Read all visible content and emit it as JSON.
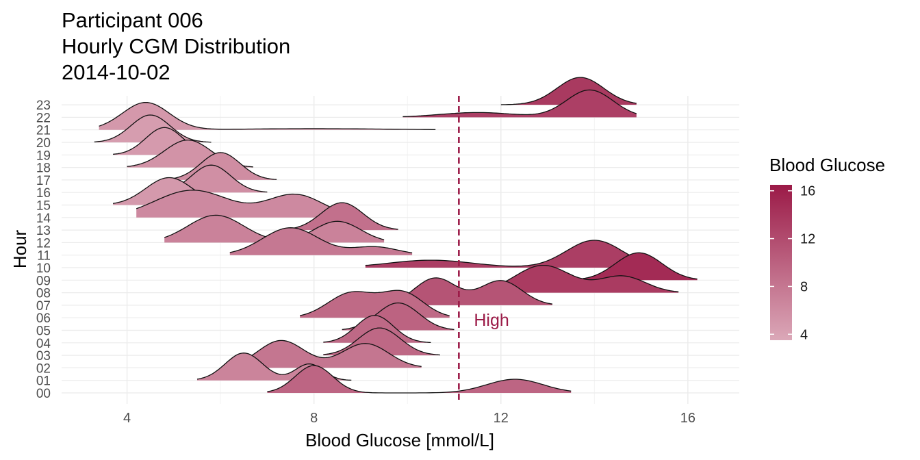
{
  "chart_data": {
    "type": "ridgeline",
    "title": [
      "Participant 006",
      "Hourly CGM Distribution",
      "2014-10-02"
    ],
    "xlabel": "Blood Glucose [mmol/L]",
    "ylabel": "Hour",
    "xlim": [
      2.6,
      17.1
    ],
    "x_ticks": [
      4,
      8,
      12,
      16
    ],
    "threshold": {
      "value": 11.1,
      "label": "High",
      "color": "#9b1a47"
    },
    "legend": {
      "title": "Blood Glucose",
      "ticks": [
        4,
        8,
        12,
        16
      ],
      "range": [
        3.5,
        16.5
      ],
      "color_low": "#dba8b8",
      "color_high": "#9b1a47"
    },
    "hours": [
      {
        "hour": "00",
        "min": 7.0,
        "max": 13.5,
        "mean": 9.6,
        "peaks": [
          [
            8.0,
            1.0,
            0.4
          ],
          [
            12.3,
            0.5,
            0.6
          ]
        ]
      },
      {
        "hour": "01",
        "min": 5.5,
        "max": 8.8,
        "mean": 6.8,
        "peaks": [
          [
            6.5,
            1.0,
            0.4
          ],
          [
            7.9,
            0.6,
            0.3
          ]
        ]
      },
      {
        "hour": "02",
        "min": 6.3,
        "max": 10.3,
        "mean": 8.1,
        "peaks": [
          [
            7.3,
            0.9,
            0.5
          ],
          [
            9.1,
            0.8,
            0.5
          ]
        ]
      },
      {
        "hour": "03",
        "min": 8.2,
        "max": 10.7,
        "mean": 9.4,
        "peaks": [
          [
            9.4,
            1.0,
            0.45
          ]
        ]
      },
      {
        "hour": "04",
        "min": 8.2,
        "max": 10.5,
        "mean": 9.3,
        "peaks": [
          [
            9.3,
            1.0,
            0.4
          ]
        ]
      },
      {
        "hour": "05",
        "min": 8.6,
        "max": 11.0,
        "mean": 9.8,
        "peaks": [
          [
            9.8,
            1.0,
            0.45
          ]
        ]
      },
      {
        "hour": "06",
        "min": 7.7,
        "max": 10.9,
        "mean": 9.2,
        "peaks": [
          [
            8.8,
            0.9,
            0.5
          ],
          [
            9.9,
            0.9,
            0.45
          ]
        ]
      },
      {
        "hour": "07",
        "min": 9.5,
        "max": 13.1,
        "mean": 11.2,
        "peaks": [
          [
            10.6,
            1.0,
            0.45
          ],
          [
            12.0,
            0.9,
            0.45
          ]
        ]
      },
      {
        "hour": "08",
        "min": 11.7,
        "max": 15.8,
        "mean": 13.5,
        "peaks": [
          [
            12.9,
            1.0,
            0.6
          ],
          [
            14.6,
            0.6,
            0.5
          ]
        ]
      },
      {
        "hour": "09",
        "min": 13.5,
        "max": 16.2,
        "mean": 14.9,
        "peaks": [
          [
            14.95,
            1.0,
            0.5
          ]
        ]
      },
      {
        "hour": "10",
        "min": 9.1,
        "max": 15.1,
        "mean": 13.2,
        "peaks": [
          [
            10.5,
            0.15,
            0.9
          ],
          [
            14.0,
            0.55,
            0.6
          ]
        ]
      },
      {
        "hour": "11",
        "min": 6.2,
        "max": 10.1,
        "mean": 7.9,
        "peaks": [
          [
            7.5,
            1.0,
            0.6
          ],
          [
            9.3,
            0.3,
            0.5
          ]
        ]
      },
      {
        "hour": "12",
        "min": 4.8,
        "max": 9.5,
        "mean": 7.0,
        "peaks": [
          [
            5.9,
            0.9,
            0.6
          ],
          [
            8.5,
            0.7,
            0.5
          ]
        ]
      },
      {
        "hour": "13",
        "min": 7.4,
        "max": 9.8,
        "mean": 8.6,
        "peaks": [
          [
            8.6,
            1.0,
            0.45
          ]
        ]
      },
      {
        "hour": "14",
        "min": 4.2,
        "max": 8.9,
        "mean": 6.3,
        "peaks": [
          [
            5.4,
            0.6,
            0.8
          ],
          [
            7.6,
            0.5,
            0.6
          ]
        ]
      },
      {
        "hour": "15",
        "min": 3.7,
        "max": 6.5,
        "mean": 4.9,
        "peaks": [
          [
            4.9,
            1.0,
            0.5
          ]
        ]
      },
      {
        "hour": "16",
        "min": 4.7,
        "max": 7.0,
        "mean": 5.8,
        "peaks": [
          [
            5.8,
            1.0,
            0.42
          ]
        ]
      },
      {
        "hour": "17",
        "min": 4.9,
        "max": 7.2,
        "mean": 6.0,
        "peaks": [
          [
            6.0,
            1.0,
            0.42
          ]
        ]
      },
      {
        "hour": "18",
        "min": 4.0,
        "max": 6.7,
        "mean": 5.4,
        "peaks": [
          [
            5.3,
            1.0,
            0.5
          ]
        ]
      },
      {
        "hour": "19",
        "min": 3.7,
        "max": 5.9,
        "mean": 4.8,
        "peaks": [
          [
            4.8,
            1.0,
            0.4
          ]
        ]
      },
      {
        "hour": "20",
        "min": 3.3,
        "max": 5.8,
        "mean": 4.5,
        "peaks": [
          [
            4.5,
            1.0,
            0.42
          ]
        ]
      },
      {
        "hour": "21",
        "min": 3.4,
        "max": 10.6,
        "mean": 5.0,
        "peaks": [
          [
            4.4,
            0.9,
            0.5
          ],
          [
            8.0,
            0.04,
            1.5
          ]
        ]
      },
      {
        "hour": "22",
        "min": 9.9,
        "max": 14.9,
        "mean": 13.1,
        "peaks": [
          [
            11.5,
            0.15,
            0.8
          ],
          [
            13.9,
            0.85,
            0.5
          ]
        ]
      },
      {
        "hour": "23",
        "min": 12.0,
        "max": 14.9,
        "mean": 13.6,
        "peaks": [
          [
            13.7,
            1.0,
            0.5
          ]
        ]
      }
    ]
  }
}
